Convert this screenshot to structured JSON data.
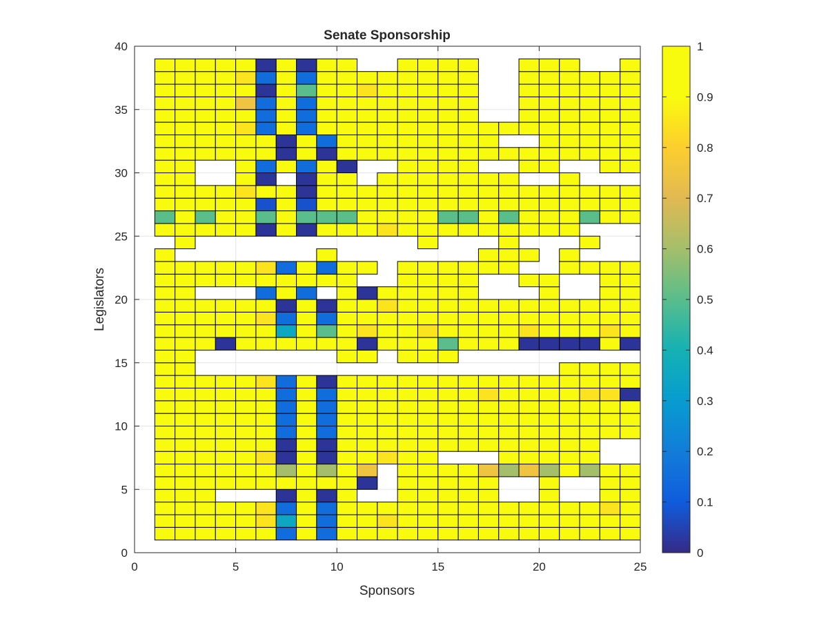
{
  "chart_data": {
    "type": "heatmap",
    "title": "Senate Sponsorship",
    "xlabel": "Sponsors",
    "ylabel": "Legislators",
    "xlim": [
      0,
      25
    ],
    "ylim": [
      0,
      40
    ],
    "xticks": [
      "0",
      "5",
      "10",
      "15",
      "20",
      "25"
    ],
    "yticks": [
      "0",
      "5",
      "10",
      "15",
      "20",
      "25",
      "30",
      "35",
      "40"
    ],
    "colorbar": {
      "limits": [
        0,
        1
      ],
      "ticks": [
        "0",
        "0.1",
        "0.2",
        "0.3",
        "0.4",
        "0.5",
        "0.6",
        "0.7",
        "0.8",
        "0.9",
        "1"
      ],
      "colormap": "parula"
    },
    "grid": true,
    "cell_grid": {
      "x_start": 1,
      "y_start": 1,
      "cell_size": 1,
      "cols": 24,
      "legend": {
        "Y": 1.0,
        "y": 0.95,
        "o": 0.85,
        "g": 0.75,
        "G": 0.6,
        "c": 0.5,
        "t": 0.35,
        "b": 0.15,
        "m": 0.08,
        "d": 0.02,
        ".": null
      },
      "rows_bottom_to_top": [
        "YYYYYYbYbYYyYYYYYYYYyYYY",
        "YYYYYotYbYYoyyYYYYYYYYYY",
        "YYYYYobYbYyyYyyYYYYYYYoY",
        "YyY...dYdY..YYYYY..Y..YY",
        "YYYYYYYYYYd.YYYYY..Y..YY",
        "YYYYYYGYGYg.YYYYgGgGYGYY",
        "YYYYYodYdYYoyy...YYYYY..",
        "YYYYYYdYdYYyYYYYYYYYYY..",
        "YYYYYybYbYYYYYYYYYYYYYYY",
        "YYYYYYbYbYYyYYYYYYYYYYYY",
        "YYYYYybYbYYyYYYYYYYYYYYY",
        "YYYyYybYbYYYYYYYoyyYYood",
        "YYYyyobYdYYyYYyYYYYYYYYY",
        "YY..................YYYY",
        "YY.......YY.YYY.........",
        "YYYdYYYYYYdYYYcYYYddddYd",
        "YYYYYYtYcYoYYoYYYYoYYYoY",
        "YYYyyobYbYYyYYYYYYYYYYYY",
        "YYYYyYdYdYYoYYyyYYYYYYYY",
        "YY...bYb.YdYYYyY...Y..YY",
        "YYYYYYYYYY..YYYY..YY..YY",
        "YYYYYobYbYY.YYYYYY..YYYY",
        "Y.......Y.......YYY.Y...",
        ".Y...........Y...Y...Y..",
        "YYYYydYdYyYoyyYYYYYYY...",
        "cYcYYcYcccYYYYccYcYYYcYY",
        "YYYYYmYmYYYyYYYYYYYYYYYY",
        "YYYYoyYdYYYyYYYYYYYYYYYY",
        "YY..Yd.dYY.YyYYYYY..Y...",
        "YY..YbYbYd..YYYY..YY..YY",
        "YYYYYYdYdYYYYYYYYYYYYYYY",
        "YYYYYydYbYYyyyYYY..YYYYY",
        "YYYYobYbYYYyyyyYYYYYYYYY",
        "YYYYybYbYYYYYYyY..YYYYYY",
        "YYYYgbYbYYYyYYYY..YYYYYY",
        "YYYYYdYcYYoYYYYY..YYYYYY",
        "YYYYobYbYYYYYYyY..YYYYYY",
        "YYYYYdYdYY..YYYY..YYY..Y"
      ]
    }
  }
}
